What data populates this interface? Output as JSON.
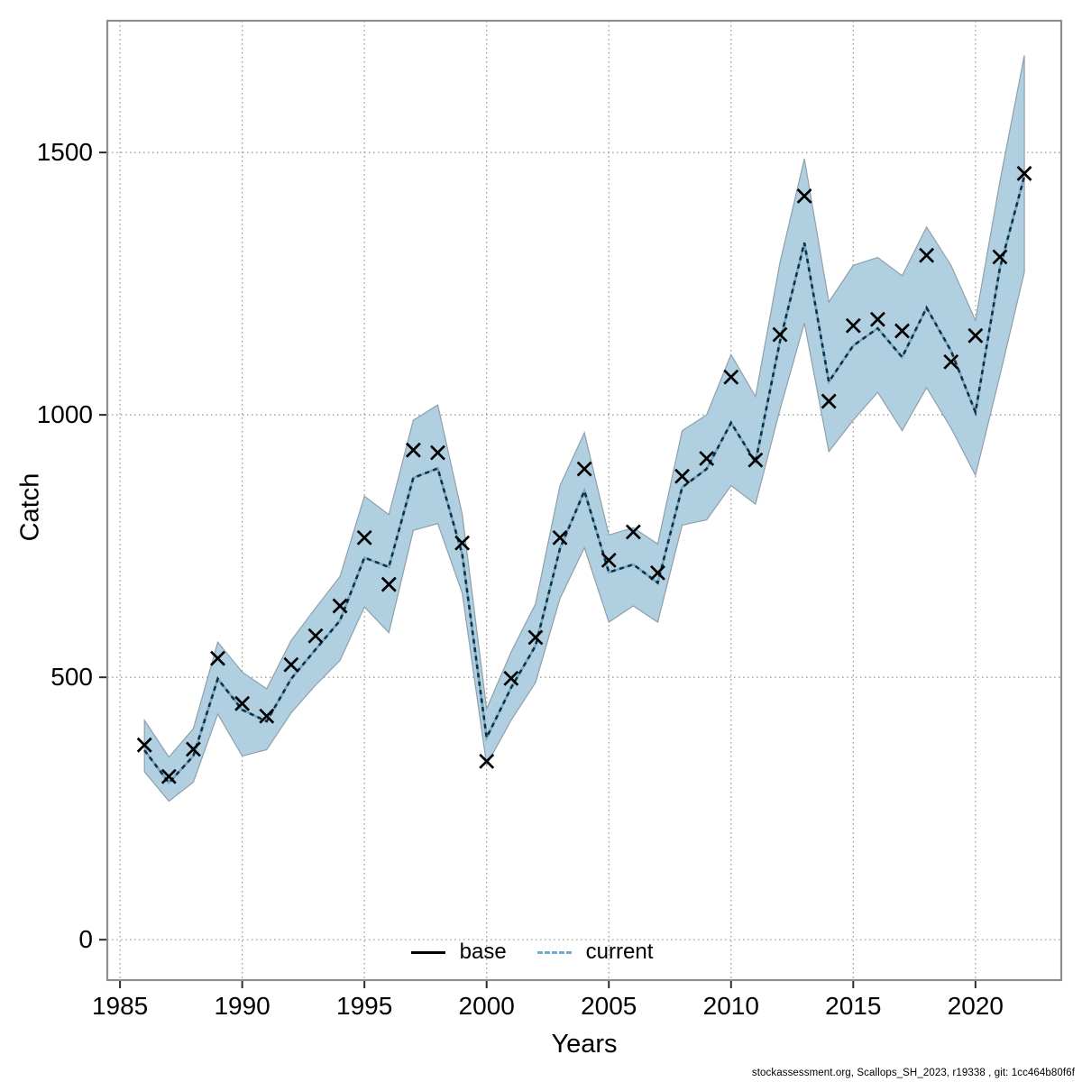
{
  "figure": {
    "footer": "stockassessment.org, Scallops_SH_2023, r19338 , git: 1cc464b80f6f",
    "legend": [
      {
        "label": "base",
        "style": "solid",
        "color": "#000000"
      },
      {
        "label": "current",
        "style": "dashed",
        "color": "#74abc9"
      }
    ]
  },
  "chart_data": {
    "type": "line",
    "title": "",
    "xlabel": "Years",
    "ylabel": "Catch",
    "xlim": [
      1984.48,
      2023.51
    ],
    "ylim": [
      -77,
      1751
    ],
    "xticks": [
      1985,
      1990,
      1995,
      2000,
      2005,
      2010,
      2015,
      2020
    ],
    "yticks": [
      0,
      500,
      1000,
      1500
    ],
    "grid": true,
    "legend_position": "bottom-center",
    "x": [
      1986,
      1987,
      1988,
      1989,
      1990,
      1991,
      1992,
      1993,
      1994,
      1995,
      1996,
      1997,
      1998,
      1999,
      2000,
      2001,
      2002,
      2003,
      2004,
      2005,
      2006,
      2007,
      2008,
      2009,
      2010,
      2011,
      2012,
      2013,
      2014,
      2015,
      2016,
      2017,
      2018,
      2019,
      2020,
      2021,
      2022
    ],
    "series": [
      {
        "name": "base",
        "marker": "x",
        "color": "#000000",
        "values": [
          371,
          311,
          363,
          536,
          450,
          426,
          524,
          579,
          636,
          766,
          677,
          933,
          928,
          756,
          340,
          498,
          576,
          766,
          897,
          723,
          777,
          699,
          883,
          917,
          1072,
          914,
          1153,
          1417,
          1026,
          1170,
          1182,
          1160,
          1304,
          1101,
          1151,
          1301,
          1460
        ]
      },
      {
        "name": "current",
        "line": "dashed",
        "color": "#74abc9",
        "dash_color": "#152f3e",
        "values": [
          361,
          299,
          350,
          497,
          438,
          416,
          497,
          553,
          608,
          728,
          710,
          880,
          898,
          735,
          385,
          480,
          560,
          745,
          855,
          700,
          715,
          680,
          862,
          897,
          985,
          910,
          1140,
          1328,
          1063,
          1132,
          1165,
          1110,
          1204,
          1122,
          1005,
          1280,
          1455
        ]
      }
    ],
    "band": {
      "name": "current-confidence-band",
      "fill": "#b0cfe0",
      "stroke": "#8fa0ab",
      "lo": [
        320,
        264,
        300,
        430,
        350,
        362,
        432,
        485,
        532,
        634,
        585,
        780,
        793,
        661,
        333,
        418,
        490,
        650,
        747,
        605,
        636,
        605,
        790,
        800,
        865,
        830,
        1010,
        1175,
        930,
        990,
        1043,
        970,
        1052,
        975,
        885,
        1075,
        1272
      ],
      "hi": [
        418,
        348,
        402,
        567,
        510,
        478,
        570,
        632,
        692,
        845,
        810,
        990,
        1019,
        811,
        440,
        548,
        640,
        865,
        966,
        771,
        785,
        754,
        970,
        1000,
        1115,
        1035,
        1290,
        1488,
        1215,
        1285,
        1300,
        1265,
        1358,
        1285,
        1180,
        1445,
        1685
      ]
    },
    "style": {
      "grid_color": "#9a9a9a",
      "box_color": "#8f8f8f",
      "tick_color": "#2b2b2b",
      "background": "#ffffff"
    }
  }
}
